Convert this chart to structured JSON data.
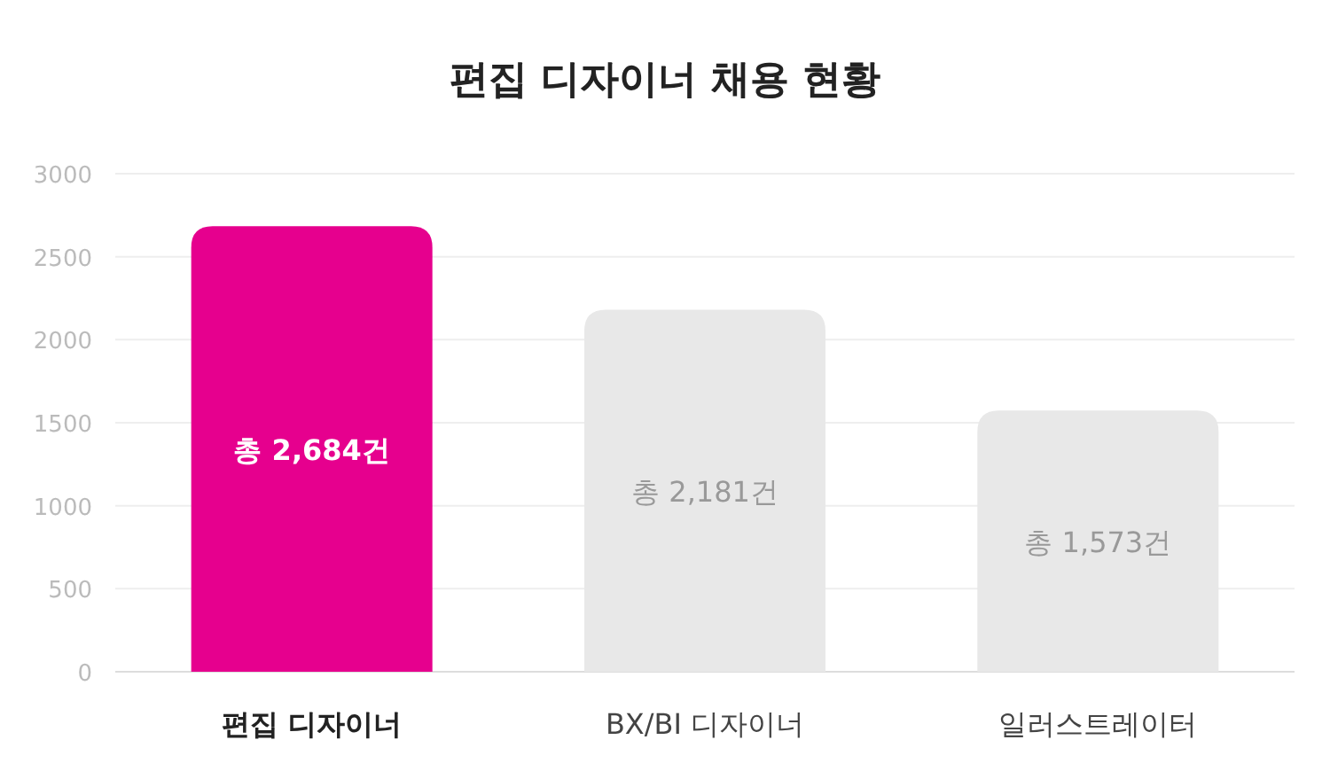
{
  "chart_data": {
    "type": "bar",
    "title": "편집 디자이너 채용 현황",
    "categories": [
      "편집 디자이너",
      "BX/BI 디자이너",
      "일러스트레이터"
    ],
    "values": [
      2684,
      2181,
      1573
    ],
    "value_labels": [
      "총 2,684건",
      "총 2,181건",
      "총 1,573건"
    ],
    "colors": [
      "#e6008e",
      "#e8e8e8",
      "#e8e8e8"
    ],
    "ylim": [
      0,
      3000
    ],
    "yticks": [
      0,
      500,
      1000,
      1500,
      2000,
      2500,
      3000
    ],
    "grid": "y"
  }
}
